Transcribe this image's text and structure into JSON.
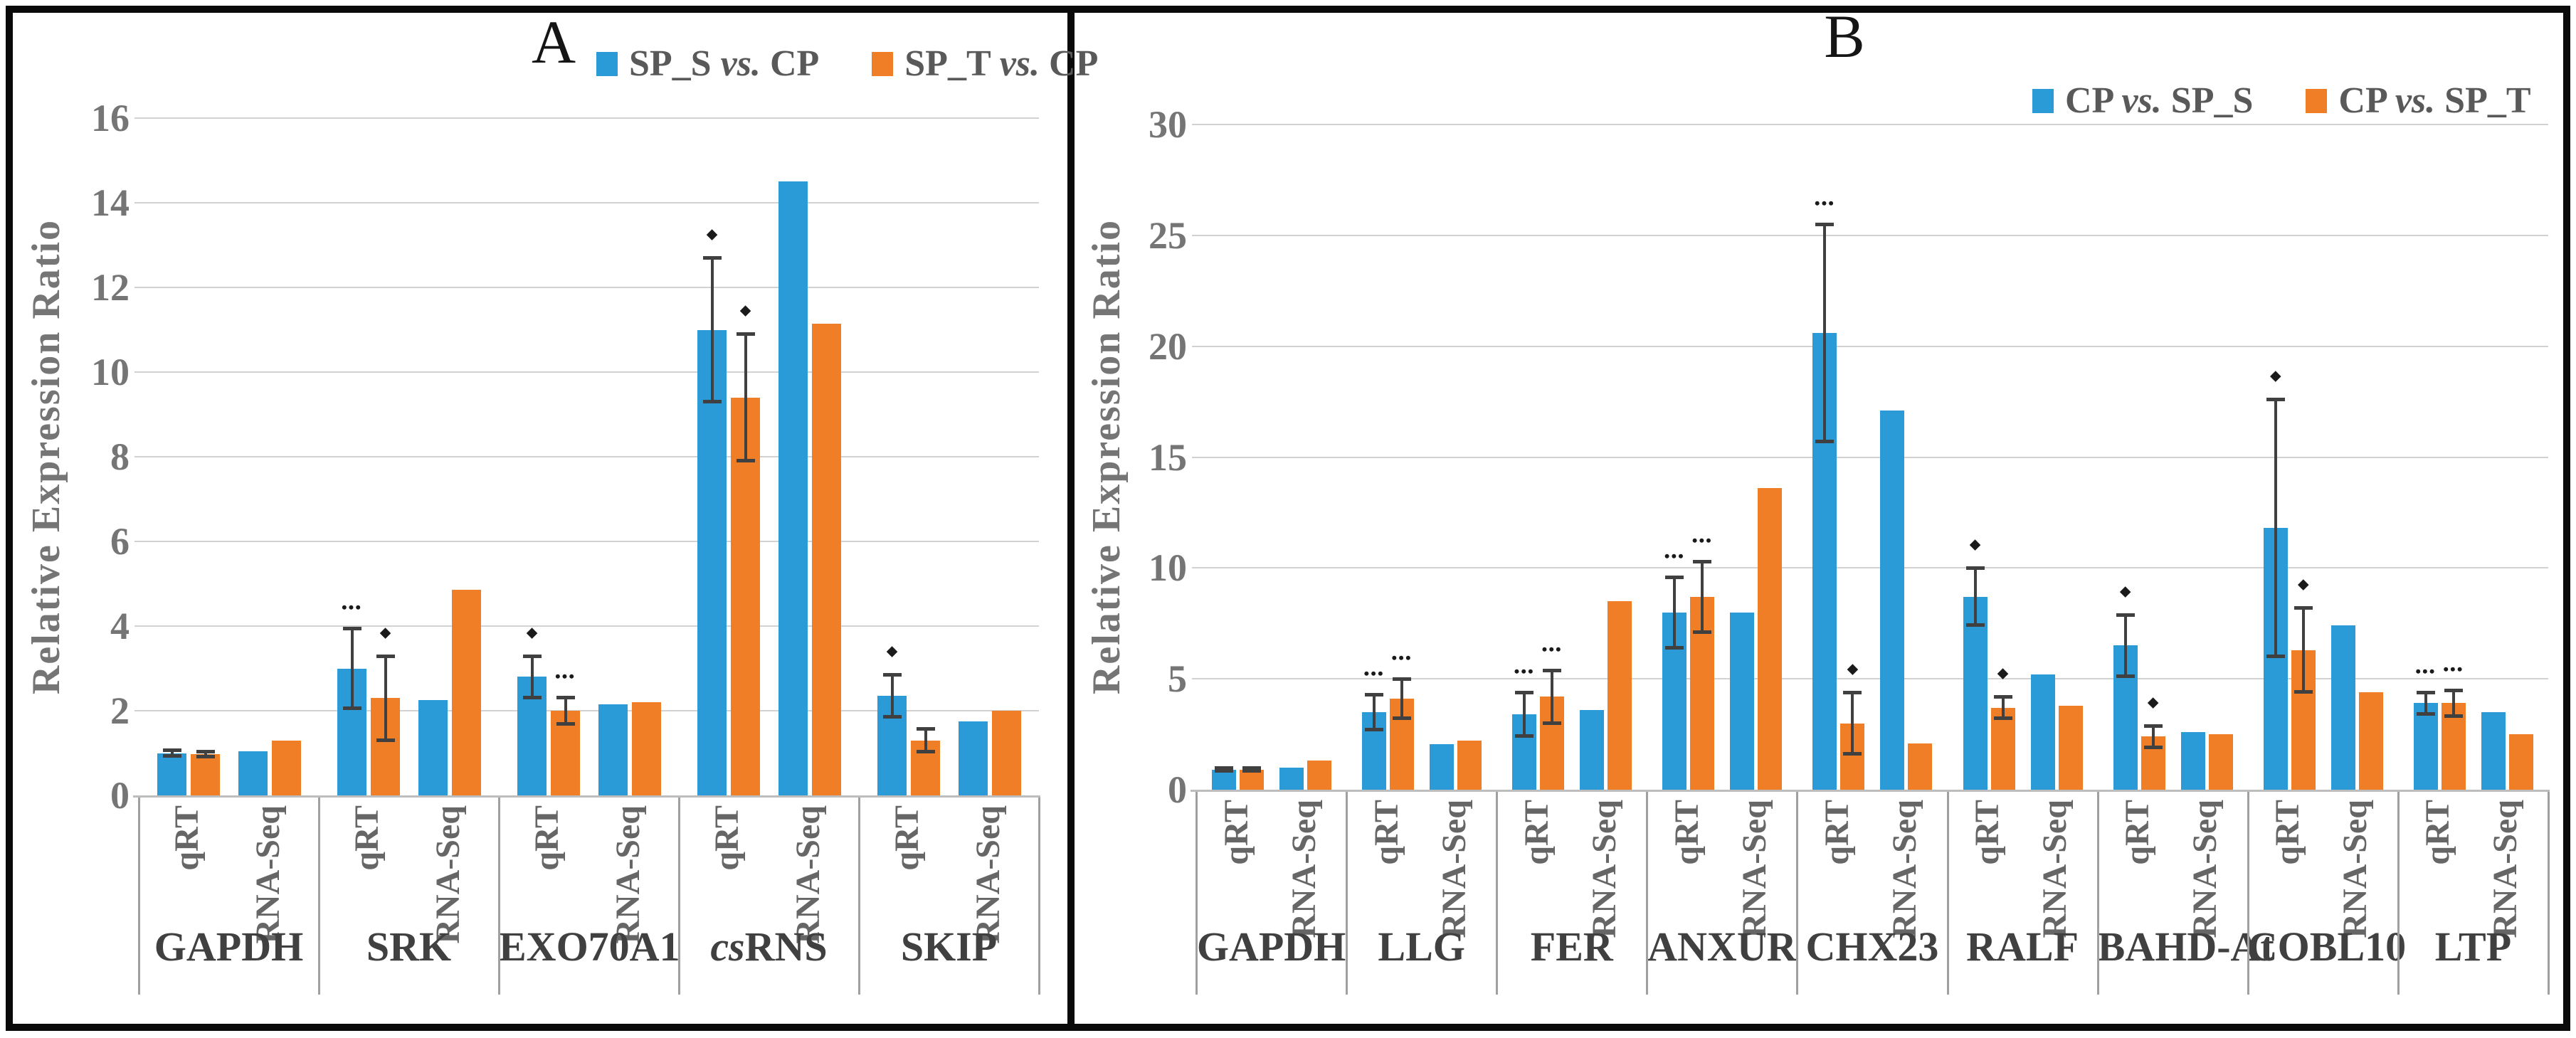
{
  "figure": {
    "background": "#ffffff",
    "border_color": "#0a0a0a"
  },
  "colors": {
    "series1": "#2B9BD7",
    "series2": "#F07E26",
    "grid": "#D2D2D2",
    "baseline": "#BDBDBD",
    "separator": "#A0A0A0",
    "error_bar": "#404040",
    "tick_text": "#757575",
    "gene_text": "#404040",
    "category_text": "#666666",
    "legend_text": "#595959",
    "title_text": "#151515"
  },
  "chart_data": [
    {
      "type": "bar",
      "title": "A",
      "ylabel": "Relative Expression Ratio",
      "ylim": [
        0,
        16
      ],
      "ytick_step": 2,
      "yticks": [
        0,
        2,
        4,
        6,
        8,
        10,
        12,
        14,
        16
      ],
      "grid": true,
      "legend_position": "top-right",
      "cluster_labels": [
        "qRT",
        "RNA-Seq"
      ],
      "series": [
        {
          "name": "SP_S vs. CP",
          "color_key": "series1"
        },
        {
          "name": "SP_T vs. CP",
          "color_key": "series2"
        }
      ],
      "significance_note": "*** = three asterisks marker, * = single dot marker above error bar",
      "groups": [
        {
          "gene": "GAPDH",
          "gene_prefix_italic": "",
          "clusters": [
            [
              {
                "v": 1.0,
                "e": 0.07
              },
              {
                "v": 0.97,
                "e": 0.07
              }
            ],
            [
              {
                "v": 1.05
              },
              {
                "v": 1.3
              }
            ]
          ]
        },
        {
          "gene": "SRK",
          "gene_prefix_italic": "",
          "clusters": [
            [
              {
                "v": 3.0,
                "e": 0.95,
                "s": "***"
              },
              {
                "v": 2.3,
                "e": 1.0,
                "s": "*"
              }
            ],
            [
              {
                "v": 2.25
              },
              {
                "v": 4.85
              }
            ]
          ]
        },
        {
          "gene": "EXO70A1",
          "gene_prefix_italic": "",
          "clusters": [
            [
              {
                "v": 2.8,
                "e": 0.5,
                "s": "*"
              },
              {
                "v": 2.0,
                "e": 0.32,
                "s": "***"
              }
            ],
            [
              {
                "v": 2.15
              },
              {
                "v": 2.2
              }
            ]
          ]
        },
        {
          "gene": "RNS",
          "gene_prefix_italic": "cs",
          "clusters": [
            [
              {
                "v": 11.0,
                "e": 1.7,
                "s": "*"
              },
              {
                "v": 9.4,
                "e": 1.5,
                "s": "*"
              }
            ],
            [
              {
                "v": 14.5
              },
              {
                "v": 11.15
              }
            ]
          ]
        },
        {
          "gene": "SKIP",
          "gene_prefix_italic": "",
          "clusters": [
            [
              {
                "v": 2.35,
                "e": 0.5,
                "s": "*"
              },
              {
                "v": 1.3,
                "e": 0.28
              }
            ],
            [
              {
                "v": 1.75
              },
              {
                "v": 2.0
              }
            ]
          ]
        }
      ]
    },
    {
      "type": "bar",
      "title": "B",
      "ylabel": "Relative Expression Ratio",
      "ylim": [
        0,
        30
      ],
      "ytick_step": 5,
      "yticks": [
        0,
        5,
        10,
        15,
        20,
        25,
        30
      ],
      "grid": true,
      "legend_position": "top-right",
      "cluster_labels": [
        "qRT",
        "RNA-Seq"
      ],
      "series": [
        {
          "name": "CP vs. SP_S",
          "color_key": "series1"
        },
        {
          "name": "CP vs. SP_T",
          "color_key": "series2"
        }
      ],
      "significance_note": "*** = three asterisks marker, * = single dot marker above error bar",
      "groups": [
        {
          "gene": "GAPDH",
          "gene_prefix_italic": "",
          "clusters": [
            [
              {
                "v": 0.9,
                "e": 0.08
              },
              {
                "v": 0.9,
                "e": 0.08
              }
            ],
            [
              {
                "v": 1.0
              },
              {
                "v": 1.3
              }
            ]
          ]
        },
        {
          "gene": "LLG",
          "gene_prefix_italic": "",
          "clusters": [
            [
              {
                "v": 3.5,
                "e": 0.8,
                "s": "***"
              },
              {
                "v": 4.1,
                "e": 0.9,
                "s": "***"
              }
            ],
            [
              {
                "v": 2.05
              },
              {
                "v": 2.2
              }
            ]
          ]
        },
        {
          "gene": "FER",
          "gene_prefix_italic": "",
          "clusters": [
            [
              {
                "v": 3.4,
                "e": 1.0,
                "s": "***"
              },
              {
                "v": 4.2,
                "e": 1.2,
                "s": "***"
              }
            ],
            [
              {
                "v": 3.6
              },
              {
                "v": 8.5
              }
            ]
          ]
        },
        {
          "gene": "ANXUR",
          "gene_prefix_italic": "",
          "clusters": [
            [
              {
                "v": 8.0,
                "e": 1.6,
                "s": "***"
              },
              {
                "v": 8.7,
                "e": 1.6,
                "s": "***"
              }
            ],
            [
              {
                "v": 8.0
              },
              {
                "v": 13.6
              }
            ]
          ]
        },
        {
          "gene": "CHX23",
          "gene_prefix_italic": "",
          "clusters": [
            [
              {
                "v": 20.6,
                "e": 4.9,
                "s": "***"
              },
              {
                "v": 3.0,
                "e": 1.4,
                "s": "*"
              }
            ],
            [
              {
                "v": 17.1
              },
              {
                "v": 2.1
              }
            ]
          ]
        },
        {
          "gene": "RALF",
          "gene_prefix_italic": "",
          "clusters": [
            [
              {
                "v": 8.7,
                "e": 1.3,
                "s": "*"
              },
              {
                "v": 3.7,
                "e": 0.5,
                "s": "*"
              }
            ],
            [
              {
                "v": 5.2
              },
              {
                "v": 3.8
              }
            ]
          ]
        },
        {
          "gene": "BAHD-At",
          "gene_prefix_italic": "",
          "clusters": [
            [
              {
                "v": 6.5,
                "e": 1.4,
                "s": "*"
              },
              {
                "v": 2.4,
                "e": 0.5,
                "s": "*"
              }
            ],
            [
              {
                "v": 2.6
              },
              {
                "v": 2.5
              }
            ]
          ]
        },
        {
          "gene": "COBL10",
          "gene_prefix_italic": "",
          "clusters": [
            [
              {
                "v": 11.8,
                "e": 5.8,
                "s": "*"
              },
              {
                "v": 6.3,
                "e": 1.9,
                "s": "*"
              }
            ],
            [
              {
                "v": 7.4
              },
              {
                "v": 4.4
              }
            ]
          ]
        },
        {
          "gene": "LTP",
          "gene_prefix_italic": "",
          "clusters": [
            [
              {
                "v": 3.9,
                "e": 0.5,
                "s": "***"
              },
              {
                "v": 3.9,
                "e": 0.6,
                "s": "***"
              }
            ],
            [
              {
                "v": 3.5
              },
              {
                "v": 2.5
              }
            ]
          ]
        }
      ]
    }
  ]
}
